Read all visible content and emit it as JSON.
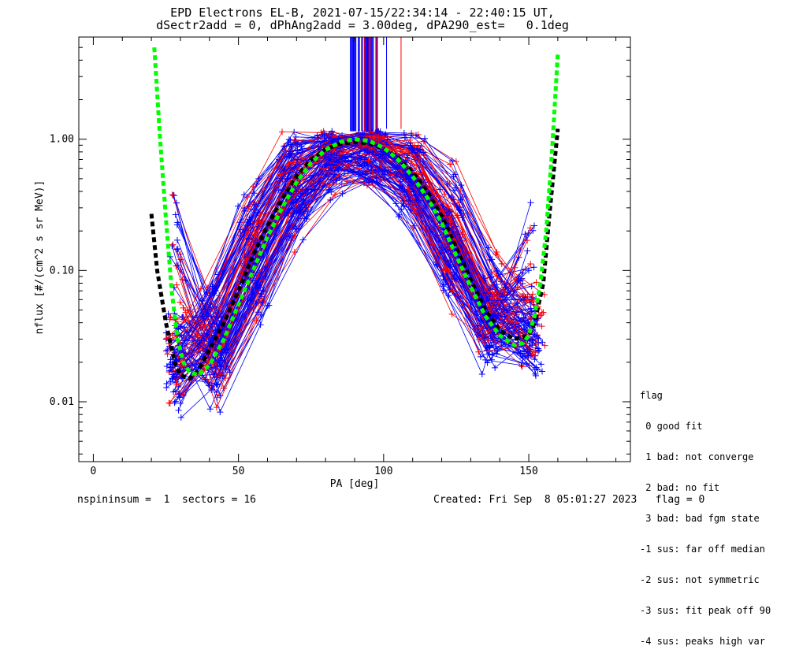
{
  "title_line1": "EPD Electrons EL-B, 2021-07-15/22:34:14 - 22:40:15 UT,",
  "title_line2": "dSectr2add = 0, dPhAng2add = 3.00deg, dPA290_est=   0.1deg",
  "footer_left": "nspininsum =  1  sectors = 16",
  "footer_right": "Created: Fri Sep  8 05:01:27 2023   flag = 0",
  "legend": {
    "title": "flag",
    "items": [
      " 0 good fit",
      " 1 bad: not converge",
      " 2 bad: no fit",
      " 3 bad: bad fgm state",
      "-1 sus: far off median",
      "-2 sus: not symmetric",
      "-3 sus: fit peak off 90",
      "-4 sus: peaks high var"
    ]
  },
  "chart_data": {
    "type": "line",
    "xlabel": "PA [deg]",
    "ylabel": "nflux [#/(cm^2 s sr MeV)]",
    "xlim": [
      -5,
      185
    ],
    "ylim": [
      0.0035,
      6.0
    ],
    "yscale": "log",
    "xticks": [
      0,
      50,
      100,
      150
    ],
    "xtick_labels": [
      "0",
      "50",
      "100",
      "150"
    ],
    "yticks": [
      0.01,
      0.1,
      1.0
    ],
    "ytick_labels": [
      "0.01",
      "0.10",
      "1.00"
    ],
    "colors": {
      "spectra_a": "#0000ff",
      "spectra_b": "#ff0000",
      "median": "#000000",
      "fit": "#00ff00"
    },
    "series": [
      {
        "style": "dashed",
        "color": "#000000",
        "x": [
          20,
          22,
          25,
          28,
          30,
          33,
          36,
          40,
          45,
          50,
          55,
          60,
          65,
          70,
          75,
          80,
          85,
          90,
          95,
          100,
          105,
          110,
          115,
          120,
          125,
          130,
          135,
          140,
          145,
          150,
          152,
          155,
          157,
          160
        ],
        "y": [
          0.27,
          0.1,
          0.04,
          0.02,
          0.016,
          0.015,
          0.017,
          0.025,
          0.04,
          0.07,
          0.13,
          0.22,
          0.35,
          0.52,
          0.7,
          0.84,
          0.92,
          0.95,
          0.93,
          0.85,
          0.72,
          0.56,
          0.4,
          0.26,
          0.15,
          0.085,
          0.05,
          0.035,
          0.03,
          0.032,
          0.04,
          0.08,
          0.25,
          1.2
        ]
      },
      {
        "style": "dashed",
        "color": "#00ff00",
        "x": [
          21,
          23,
          25,
          27,
          29,
          31,
          33,
          36,
          40,
          45,
          50,
          55,
          60,
          65,
          70,
          75,
          80,
          85,
          90,
          95,
          100,
          105,
          110,
          115,
          120,
          125,
          130,
          135,
          140,
          145,
          148,
          150,
          152,
          154,
          156,
          158,
          160
        ],
        "y": [
          5.0,
          1.0,
          0.25,
          0.07,
          0.03,
          0.02,
          0.017,
          0.016,
          0.019,
          0.03,
          0.055,
          0.1,
          0.18,
          0.3,
          0.47,
          0.66,
          0.83,
          0.95,
          1.0,
          0.97,
          0.86,
          0.7,
          0.52,
          0.36,
          0.23,
          0.13,
          0.075,
          0.045,
          0.032,
          0.027,
          0.028,
          0.032,
          0.045,
          0.08,
          0.2,
          0.8,
          4.5
        ]
      }
    ]
  }
}
